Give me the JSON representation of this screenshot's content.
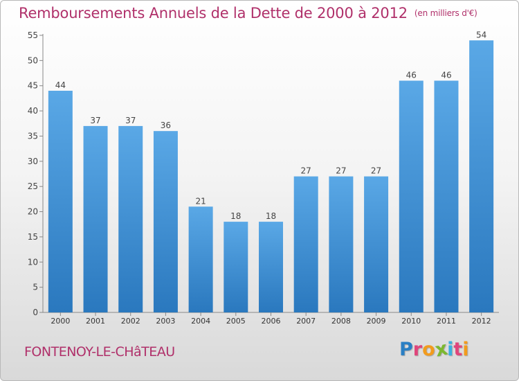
{
  "title": "Remboursements Annuels de la Dette de 2000 à 2012",
  "subtitle": "(en milliers d'€)",
  "commune": "FONTENOY-LE-CHâTEAU",
  "logo": {
    "letters": [
      "P",
      "r",
      "o",
      "x",
      "i",
      "t",
      "i"
    ],
    "colors": [
      "#2a7fc4",
      "#e0457b",
      "#f29b1d",
      "#7cb82f",
      "#3ab0e0",
      "#e0457b",
      "#f29b1d"
    ]
  },
  "colors": {
    "title": "#b0306a",
    "bar_light": "#5aa8e6",
    "bar_dark": "#2a78be"
  },
  "chart_data": {
    "type": "bar",
    "title": "Remboursements Annuels de la Dette de 2000 à 2012",
    "subtitle": "(en milliers d'€)",
    "categories": [
      "2000",
      "2001",
      "2002",
      "2003",
      "2004",
      "2005",
      "2006",
      "2007",
      "2008",
      "2009",
      "2010",
      "2011",
      "2012"
    ],
    "values": [
      44,
      37,
      37,
      36,
      21,
      18,
      18,
      27,
      27,
      27,
      46,
      46,
      54
    ],
    "xlabel": "",
    "ylabel": "",
    "ylim": [
      0,
      55
    ],
    "yticks": [
      0,
      5,
      10,
      15,
      20,
      25,
      30,
      35,
      40,
      45,
      50,
      55
    ],
    "grid": false,
    "legend": "none"
  }
}
